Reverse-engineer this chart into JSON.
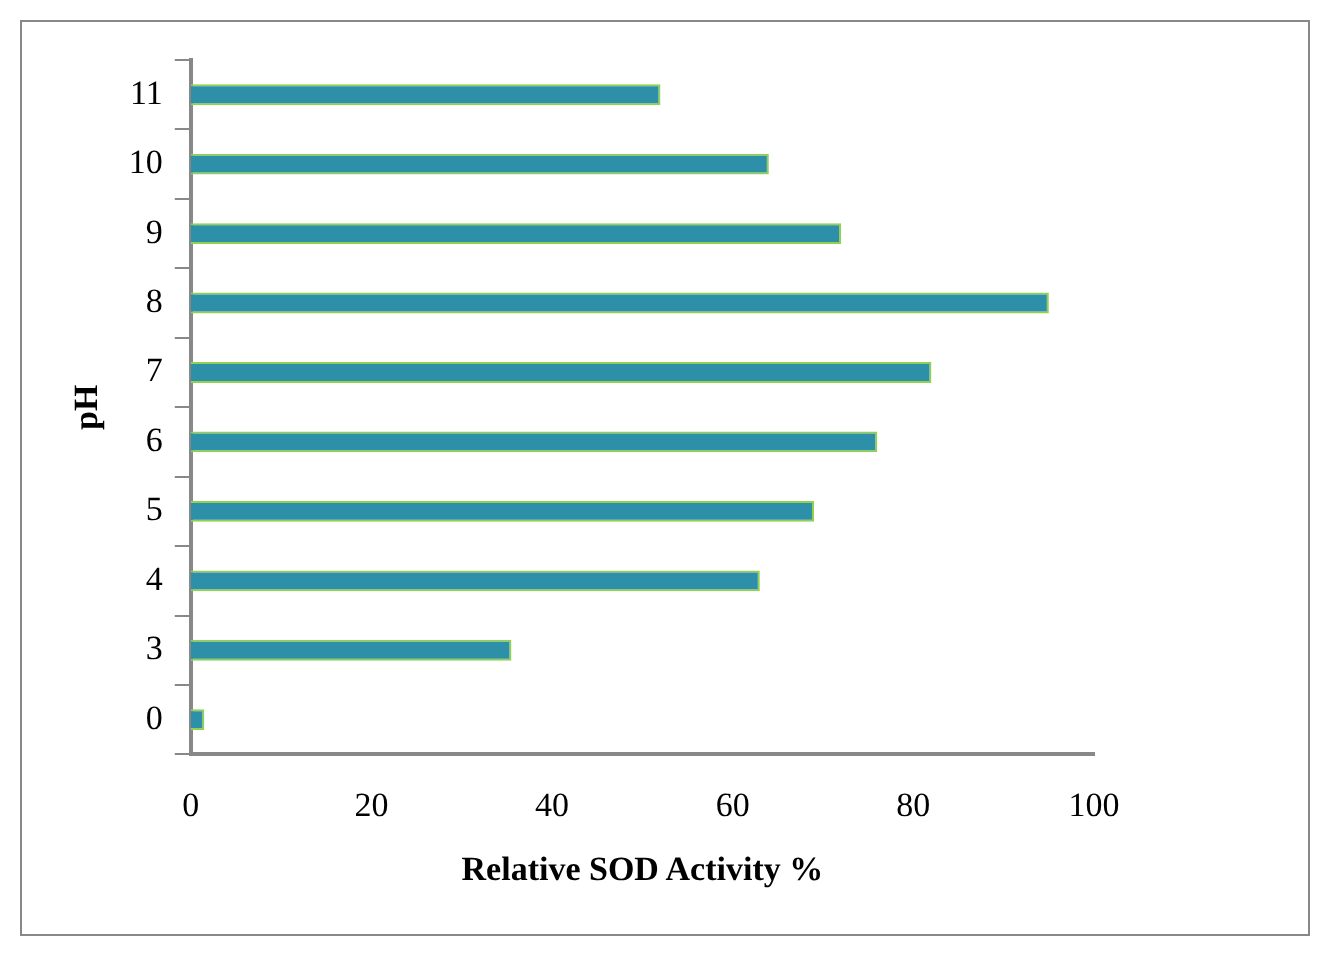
{
  "chart_data": {
    "type": "bar",
    "orientation": "horizontal",
    "xlabel": "Relative SOD Activity %",
    "ylabel": "pH",
    "categories": [
      "11",
      "10",
      "9",
      "8",
      "7",
      "6",
      "5",
      "4",
      "3",
      "0"
    ],
    "values": [
      52,
      64,
      72,
      95,
      82,
      76,
      69,
      63,
      35.5,
      1.5
    ],
    "color": "#2e8fa8",
    "xlim": [
      0,
      100
    ],
    "xticks": [
      0,
      20,
      40,
      60,
      80,
      100
    ],
    "grid": false,
    "legend": false
  }
}
